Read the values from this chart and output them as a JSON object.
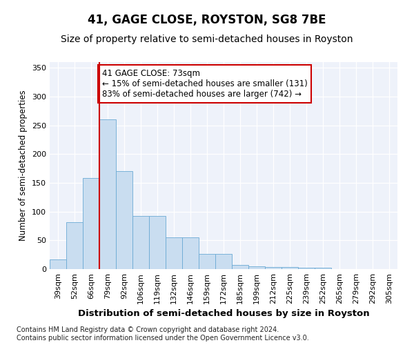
{
  "title": "41, GAGE CLOSE, ROYSTON, SG8 7BE",
  "subtitle": "Size of property relative to semi-detached houses in Royston",
  "xlabel": "Distribution of semi-detached houses by size in Royston",
  "ylabel": "Number of semi-detached properties",
  "footnote": "Contains HM Land Registry data © Crown copyright and database right 2024.\nContains public sector information licensed under the Open Government Licence v3.0.",
  "categories": [
    "39sqm",
    "52sqm",
    "66sqm",
    "79sqm",
    "92sqm",
    "106sqm",
    "119sqm",
    "132sqm",
    "146sqm",
    "159sqm",
    "172sqm",
    "185sqm",
    "199sqm",
    "212sqm",
    "225sqm",
    "239sqm",
    "252sqm",
    "265sqm",
    "279sqm",
    "292sqm",
    "305sqm"
  ],
  "values": [
    17,
    82,
    158,
    260,
    170,
    93,
    93,
    55,
    55,
    27,
    27,
    7,
    5,
    4,
    4,
    3,
    3,
    0,
    0,
    0,
    0
  ],
  "bar_color": "#c9ddf0",
  "bar_edge_color": "#6aaad4",
  "vline_color": "#cc0000",
  "annotation_text": "41 GAGE CLOSE: 73sqm\n← 15% of semi-detached houses are smaller (131)\n83% of semi-detached houses are larger (742) →",
  "annotation_box_color": "#ffffff",
  "annotation_box_edge": "#cc0000",
  "ylim": [
    0,
    360
  ],
  "yticks": [
    0,
    50,
    100,
    150,
    200,
    250,
    300,
    350
  ],
  "title_fontsize": 12,
  "subtitle_fontsize": 10,
  "xlabel_fontsize": 9.5,
  "ylabel_fontsize": 8.5,
  "tick_fontsize": 8,
  "annotation_fontsize": 8.5,
  "footnote_fontsize": 7
}
